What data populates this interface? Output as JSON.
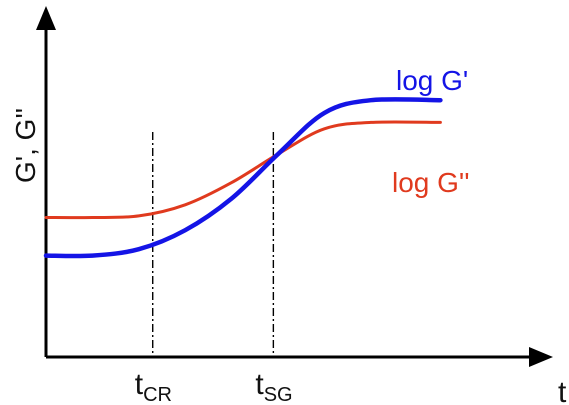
{
  "chart_data": {
    "type": "line",
    "xlabel": "t",
    "ylabel": "G', G''",
    "xlim": [
      0,
      10
    ],
    "ylim": [
      0,
      10
    ],
    "x_markers": [
      {
        "x": 2.3,
        "main": "t",
        "sub": "CR"
      },
      {
        "x": 4.9,
        "main": "t",
        "sub": "SG"
      }
    ],
    "series": [
      {
        "name": "log G'",
        "color": "#1414e6",
        "points": [
          [
            0,
            3.2
          ],
          [
            1,
            3.2
          ],
          [
            2,
            3.4
          ],
          [
            3,
            4.0
          ],
          [
            4,
            5.0
          ],
          [
            5,
            6.4
          ],
          [
            6,
            7.7
          ],
          [
            7,
            8.1
          ],
          [
            8.5,
            8.1
          ]
        ]
      },
      {
        "name": "log G''",
        "color": "#e03a1e",
        "points": [
          [
            0,
            4.4
          ],
          [
            1,
            4.4
          ],
          [
            2,
            4.45
          ],
          [
            3,
            4.8
          ],
          [
            4,
            5.5
          ],
          [
            5,
            6.4
          ],
          [
            6,
            7.2
          ],
          [
            7,
            7.4
          ],
          [
            8.5,
            7.4
          ]
        ]
      }
    ]
  }
}
